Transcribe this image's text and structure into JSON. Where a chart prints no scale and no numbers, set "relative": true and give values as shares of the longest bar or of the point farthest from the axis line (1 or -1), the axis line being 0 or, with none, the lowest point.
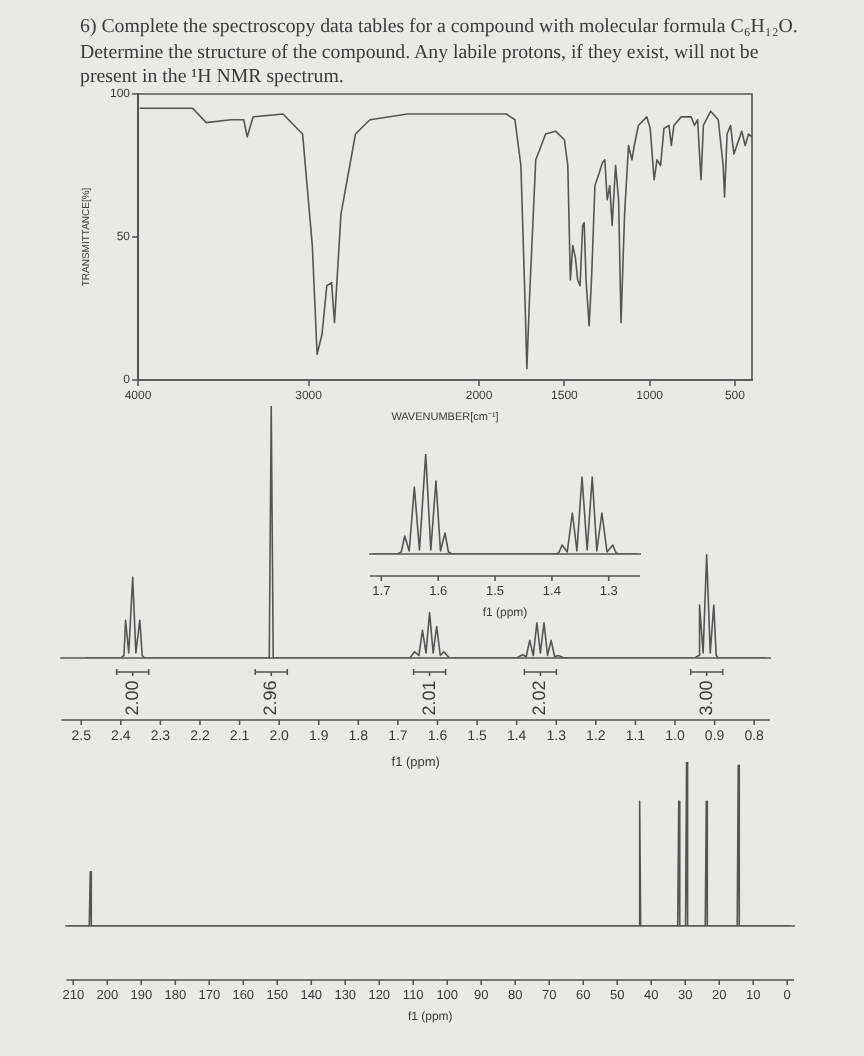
{
  "chart_data": [
    {
      "type": "line",
      "title": "6) Complete the spectroscopy data tables for a compound with molecular formula C₆H₁₂O. Determine the structure of the compound. Any labile protons, if they exist, will not be present in the ¹H NMR spectrum.",
      "xlabel": "WAVENUMBER[cm⁻¹]",
      "ylabel": "TRANSMITTANCE[%]",
      "color": "#555555",
      "marker": "none",
      "xlim": [
        4000,
        400
      ],
      "xticks": [
        4000,
        3000,
        2000,
        1500,
        1000,
        500
      ],
      "ylim": [
        0,
        100
      ],
      "yticks": [
        0,
        50,
        100
      ],
      "x": [
        3990,
        3680,
        3600,
        3455,
        3380,
        3360,
        3325,
        3150,
        3035,
        2978,
        2950,
        2921,
        2893,
        2865,
        2848,
        2810,
        2725,
        2640,
        2420,
        1840,
        1790,
        1755,
        1731,
        1720,
        1705,
        1668,
        1610,
        1552,
        1500,
        1480,
        1465,
        1451,
        1436,
        1422,
        1408,
        1393,
        1384,
        1373,
        1355,
        1341,
        1321,
        1298,
        1277,
        1263,
        1249,
        1234,
        1220,
        1200,
        1182,
        1168,
        1147,
        1124,
        1104,
        1090,
        1066,
        1017,
        997,
        974,
        957,
        936,
        916,
        887,
        873,
        858,
        815,
        757,
        737,
        719,
        699,
        685,
        642,
        598,
        569,
        561,
        546,
        526,
        506,
        483,
        460,
        440,
        420,
        402
      ],
      "values": [
        95,
        95,
        90,
        91,
        91,
        85,
        92,
        93,
        86,
        47,
        9,
        16,
        33,
        34,
        20,
        58,
        86,
        91,
        93,
        93,
        91,
        75,
        28,
        4,
        28,
        77,
        86,
        87,
        84,
        75,
        35,
        47,
        43,
        35,
        33,
        54,
        55,
        35,
        19,
        35,
        68,
        72,
        76,
        77,
        63,
        68,
        54,
        75,
        63,
        20,
        58,
        82,
        77,
        82,
        89,
        92,
        88,
        70,
        77,
        75,
        88,
        89,
        82,
        89,
        92,
        92,
        89,
        91,
        70,
        89,
        94,
        91,
        75,
        64,
        86,
        89,
        79,
        83,
        87,
        82,
        86,
        85
      ]
    },
    {
      "type": "line",
      "xlabel": "f1 (ppm)",
      "relative": true,
      "color": "#555555",
      "marker": "none",
      "xlim": [
        2.55,
        0.76
      ],
      "xticks": [
        2.5,
        2.4,
        2.3,
        2.2,
        2.1,
        {
          "value": 2,
          "label": "2.0"
        },
        1.9,
        1.8,
        1.7,
        1.6,
        1.5,
        1.4,
        1.3,
        1.2,
        1.1,
        {
          "value": 1,
          "label": "1.0"
        },
        0.9,
        0.8
      ],
      "annotations": [
        {
          "text": "2.00",
          "x": 2.37
        },
        {
          "text": "2.96",
          "x": 2.02
        },
        {
          "text": "2.01",
          "x": 1.62
        },
        {
          "text": "2.02",
          "x": 1.34
        },
        {
          "text": "3.00",
          "x": 0.92
        }
      ],
      "x": [
        2.49,
        2.4,
        2.392,
        2.388,
        2.38,
        2.37,
        2.362,
        2.352,
        2.346,
        2.34,
        2.04,
        2.025,
        2.02,
        2.015,
        2.0,
        1.67,
        1.658,
        1.647,
        1.638,
        1.629,
        1.62,
        1.611,
        1.602,
        1.593,
        1.584,
        1.57,
        1.4,
        1.385,
        1.376,
        1.367,
        1.358,
        1.349,
        1.34,
        1.331,
        1.322,
        1.313,
        1.304,
        1.295,
        1.28,
        0.95,
        0.94,
        0.938,
        0.929,
        0.92,
        0.911,
        0.902,
        0.896,
        0.89,
        0.77
      ],
      "values": [
        0,
        0,
        0.01,
        0.15,
        0.02,
        0.32,
        0.02,
        0.15,
        0.01,
        0,
        0,
        0,
        1,
        0,
        0,
        0,
        0.025,
        0.01,
        0.11,
        0.02,
        0.18,
        0.02,
        0.125,
        0.01,
        0.025,
        0,
        0,
        0.013,
        0.005,
        0.07,
        0.01,
        0.14,
        0.02,
        0.14,
        0.01,
        0.07,
        0.005,
        0.01,
        0,
        0,
        0.01,
        0.21,
        0.02,
        0.41,
        0.02,
        0.21,
        0.01,
        0,
        0
      ]
    },
    {
      "type": "line",
      "xlabel": "f1 (ppm)",
      "relative": true,
      "color": "#555555",
      "marker": "none",
      "xlim": [
        1.72,
        1.245
      ],
      "xticks": [
        1.7,
        1.6,
        1.5,
        1.4,
        1.3
      ],
      "x": [
        1.715,
        1.672,
        1.665,
        1.659,
        1.651,
        1.642,
        1.633,
        1.622,
        1.613,
        1.604,
        1.596,
        1.588,
        1.582,
        1.575,
        1.395,
        1.388,
        1.382,
        1.373,
        1.364,
        1.356,
        1.347,
        1.338,
        1.329,
        1.321,
        1.312,
        1.303,
        1.293,
        1.287,
        1.28,
        1.25
      ],
      "values": [
        0,
        0,
        0.02,
        0.18,
        0.03,
        0.67,
        0.04,
        1,
        0.04,
        0.73,
        0.03,
        0.21,
        0.02,
        0,
        0,
        0.01,
        0.09,
        0.02,
        0.41,
        0.03,
        0.77,
        0.04,
        0.77,
        0.03,
        0.41,
        0.02,
        0.09,
        0.01,
        0,
        0
      ]
    },
    {
      "type": "line",
      "xlabel": "f1 (ppm)",
      "relative": true,
      "color": "#555555",
      "marker": "none",
      "xlim": [
        212,
        -2
      ],
      "xticks": [
        210,
        200,
        190,
        180,
        170,
        160,
        150,
        140,
        130,
        120,
        110,
        100,
        90,
        80,
        70,
        60,
        50,
        40,
        30,
        20,
        10,
        0
      ],
      "x": [
        211.5,
        205.3,
        205,
        204.7,
        43.7,
        43.4,
        43.1,
        32.2,
        31.9,
        31.6,
        29.9,
        29.6,
        29.3,
        24.1,
        23.8,
        23.5,
        14.7,
        14.4,
        14.1,
        -1
      ],
      "values": [
        0,
        0,
        0.33,
        0,
        0,
        0.76,
        0,
        0,
        0.76,
        0,
        0,
        1,
        0,
        0,
        0.76,
        0,
        0,
        0.98,
        0,
        0
      ]
    }
  ]
}
